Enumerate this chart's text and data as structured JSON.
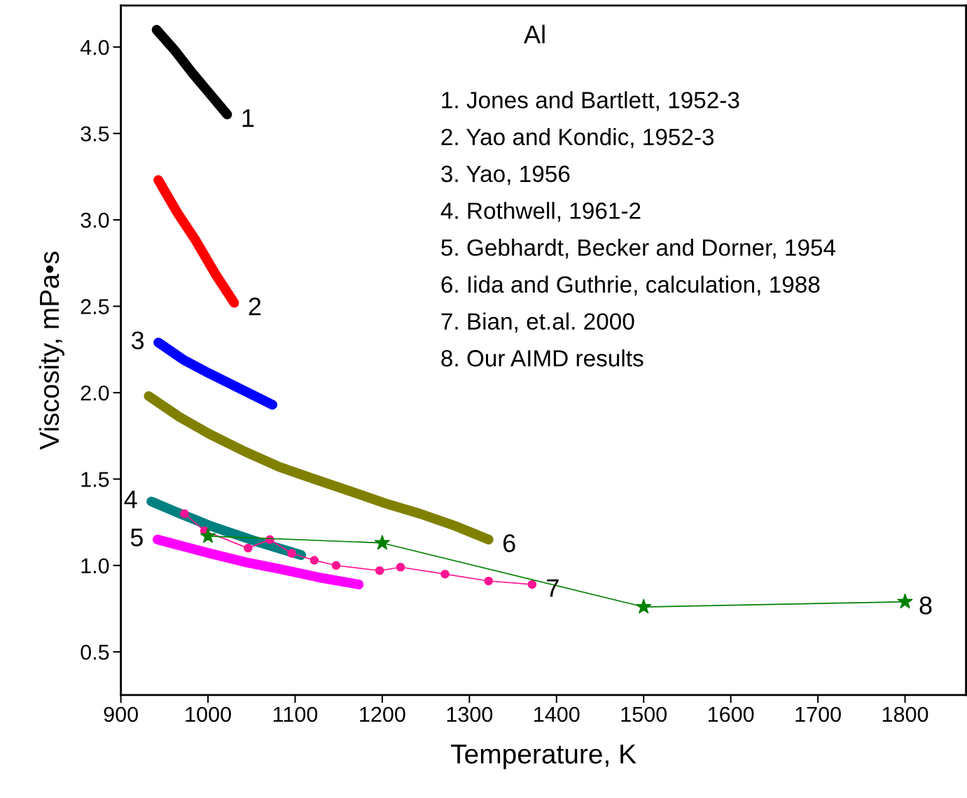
{
  "chart_data": {
    "type": "line",
    "title": "Al",
    "xlabel": "Temperature, K",
    "ylabel": "Viscosity, mPa•s",
    "xlim": [
      900,
      1870
    ],
    "ylim": [
      0.25,
      4.24
    ],
    "xticks": [
      900,
      1000,
      1100,
      1200,
      1300,
      1400,
      1500,
      1600,
      1700,
      1800
    ],
    "yticks": [
      {
        "value": 0.5,
        "label": "0.5"
      },
      {
        "value": 1,
        "label": "1.0"
      },
      {
        "value": 1.5,
        "label": "1.5"
      },
      {
        "value": 2,
        "label": "2.0"
      },
      {
        "value": 2.5,
        "label": "2.5"
      },
      {
        "value": 3,
        "label": "3.0"
      },
      {
        "value": 3.5,
        "label": "3.5"
      },
      {
        "value": 4,
        "label": "4.0"
      }
    ],
    "grid": false,
    "series": [
      {
        "color": "#000000",
        "marker": "none",
        "x": [
          941,
          962,
          982,
          1002,
          1022
        ],
        "values": [
          4.1,
          3.98,
          3.85,
          3.73,
          3.61
        ]
      },
      {
        "color": "#ff0000",
        "marker": "none",
        "x": [
          943,
          965,
          986,
          1008,
          1030
        ],
        "values": [
          3.23,
          3.04,
          2.88,
          2.69,
          2.52
        ]
      },
      {
        "color": "#0000ff",
        "marker": "none",
        "x": [
          943,
          972,
          1002,
          1038,
          1074
        ],
        "values": [
          2.29,
          2.19,
          2.11,
          2.02,
          1.93
        ]
      },
      {
        "color": "#008080",
        "marker": "none",
        "x": [
          935,
          968,
          1002,
          1055,
          1107
        ],
        "values": [
          1.37,
          1.3,
          1.23,
          1.14,
          1.06
        ]
      },
      {
        "color": "#ff00ff",
        "marker": "none",
        "x": [
          942,
          972,
          1002,
          1042,
          1082,
          1128,
          1173
        ],
        "values": [
          1.15,
          1.11,
          1.07,
          1.02,
          0.98,
          0.93,
          0.89
        ]
      },
      {
        "color": "#808000",
        "marker": "none",
        "x": [
          932,
          967,
          1002,
          1042,
          1082,
          1122,
          1163,
          1203,
          1243,
          1283,
          1322
        ],
        "values": [
          1.98,
          1.86,
          1.76,
          1.66,
          1.57,
          1.5,
          1.43,
          1.36,
          1.3,
          1.23,
          1.15
        ]
      },
      {
        "color": "#ff1493",
        "marker": "circle",
        "x": [
          973,
          996,
          1046,
          1071,
          1096,
          1122,
          1147,
          1197,
          1221,
          1272,
          1322,
          1372
        ],
        "values": [
          1.3,
          1.2,
          1.1,
          1.15,
          1.07,
          1.03,
          1.0,
          0.97,
          0.99,
          0.95,
          0.91,
          0.89
        ]
      },
      {
        "color": "#008000",
        "marker": "star",
        "x": [
          1000,
          1200,
          1500,
          1800
        ],
        "values": [
          1.17,
          1.13,
          0.76,
          0.79
        ]
      }
    ],
    "annotations": [
      {
        "text": "1",
        "x": 1022,
        "y": 3.61
      },
      {
        "text": "2",
        "x": 1030,
        "y": 2.52
      },
      {
        "text": "3",
        "x": 943,
        "y": 2.29
      },
      {
        "text": "4",
        "x": 935,
        "y": 1.37
      },
      {
        "text": "5",
        "x": 942,
        "y": 1.15
      },
      {
        "text": "6",
        "x": 1322,
        "y": 1.15
      },
      {
        "text": "7",
        "x": 1372,
        "y": 0.89
      },
      {
        "text": "8",
        "x": 1800,
        "y": 0.79
      },
      "1. Jones and Bartlett, 1952-3",
      "2. Yao and Kondic, 1952-3",
      "3. Yao, 1956",
      "4. Rothwell, 1961-2",
      "5. Gebhardt, Becker and Dorner, 1954",
      "6. Iida and Guthrie, calculation, 1988",
      "7. Bian, et.al. 2000",
      "8. Our AIMD results"
    ]
  }
}
